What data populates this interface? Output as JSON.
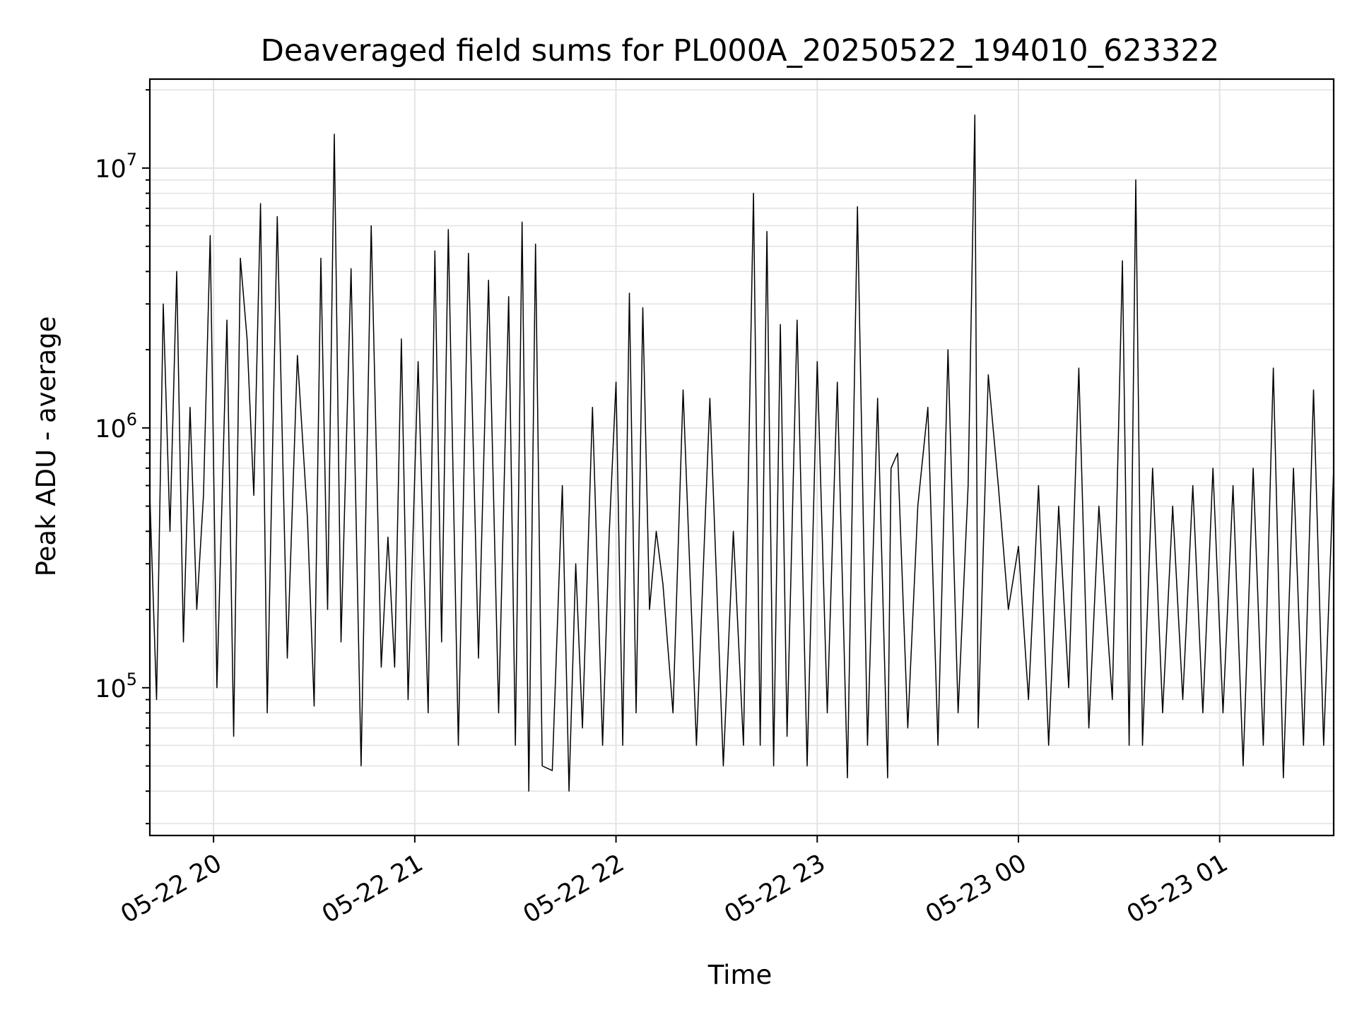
{
  "chart_data": {
    "type": "line",
    "title": "Deaveraged field sums for PL000A_20250522_194010_623322",
    "xlabel": "Time",
    "ylabel": "Peak ADU - average",
    "y_scale": "log",
    "xlim": [
      "2025-05-22 19:41",
      "2025-05-23 01:34"
    ],
    "ylim": [
      27000,
      22000000
    ],
    "x_tick_labels": [
      "05-22 20",
      "05-22 21",
      "05-22 22",
      "05-22 23",
      "05-23 00",
      "05-23 01"
    ],
    "x_ticks": [
      "2025-05-22 20:00",
      "2025-05-22 21:00",
      "2025-05-22 22:00",
      "2025-05-22 23:00",
      "2025-05-23 00:00",
      "2025-05-23 01:00"
    ],
    "y_ticks": [
      {
        "value": 100000,
        "base": "10",
        "exp": "5"
      },
      {
        "value": 1000000,
        "base": "10",
        "exp": "6"
      },
      {
        "value": 10000000,
        "base": "10",
        "exp": "7"
      }
    ],
    "grid": true,
    "series_color": "#000000",
    "series": [
      {
        "x": [
          "2025-05-22 19:41",
          "2025-05-22 19:43",
          "2025-05-22 19:45",
          "2025-05-22 19:47",
          "2025-05-22 19:49",
          "2025-05-22 19:51",
          "2025-05-22 19:53",
          "2025-05-22 19:55",
          "2025-05-22 19:57",
          "2025-05-22 19:59",
          "2025-05-22 20:01",
          "2025-05-22 20:04",
          "2025-05-22 20:06",
          "2025-05-22 20:08",
          "2025-05-22 20:10",
          "2025-05-22 20:12",
          "2025-05-22 20:14",
          "2025-05-22 20:16",
          "2025-05-22 20:19",
          "2025-05-22 20:22",
          "2025-05-22 20:25",
          "2025-05-22 20:28",
          "2025-05-22 20:30",
          "2025-05-22 20:32",
          "2025-05-22 20:34",
          "2025-05-22 20:36",
          "2025-05-22 20:38",
          "2025-05-22 20:41",
          "2025-05-22 20:44",
          "2025-05-22 20:47",
          "2025-05-22 20:50",
          "2025-05-22 20:52",
          "2025-05-22 20:54",
          "2025-05-22 20:56",
          "2025-05-22 20:58",
          "2025-05-22 21:01",
          "2025-05-22 21:04",
          "2025-05-22 21:06",
          "2025-05-22 21:08",
          "2025-05-22 21:10",
          "2025-05-22 21:13",
          "2025-05-22 21:16",
          "2025-05-22 21:19",
          "2025-05-22 21:22",
          "2025-05-22 21:25",
          "2025-05-22 21:28",
          "2025-05-22 21:30",
          "2025-05-22 21:32",
          "2025-05-22 21:34",
          "2025-05-22 21:36",
          "2025-05-22 21:38",
          "2025-05-22 21:41",
          "2025-05-22 21:44",
          "2025-05-22 21:46",
          "2025-05-22 21:48",
          "2025-05-22 21:50",
          "2025-05-22 21:53",
          "2025-05-22 21:56",
          "2025-05-22 21:58",
          "2025-05-22 22:00",
          "2025-05-22 22:02",
          "2025-05-22 22:04",
          "2025-05-22 22:06",
          "2025-05-22 22:08",
          "2025-05-22 22:10",
          "2025-05-22 22:12",
          "2025-05-22 22:14",
          "2025-05-22 22:17",
          "2025-05-22 22:20",
          "2025-05-22 22:24",
          "2025-05-22 22:28",
          "2025-05-22 22:32",
          "2025-05-22 22:35",
          "2025-05-22 22:38",
          "2025-05-22 22:41",
          "2025-05-22 22:43",
          "2025-05-22 22:45",
          "2025-05-22 22:47",
          "2025-05-22 22:49",
          "2025-05-22 22:51",
          "2025-05-22 22:54",
          "2025-05-22 22:57",
          "2025-05-22 23:00",
          "2025-05-22 23:03",
          "2025-05-22 23:06",
          "2025-05-22 23:09",
          "2025-05-22 23:12",
          "2025-05-22 23:15",
          "2025-05-22 23:18",
          "2025-05-22 23:21",
          "2025-05-22 23:22",
          "2025-05-22 23:24",
          "2025-05-22 23:27",
          "2025-05-22 23:30",
          "2025-05-22 23:33",
          "2025-05-22 23:36",
          "2025-05-22 23:39",
          "2025-05-22 23:42",
          "2025-05-22 23:45",
          "2025-05-22 23:47",
          "2025-05-22 23:48",
          "2025-05-22 23:51",
          "2025-05-22 23:54",
          "2025-05-22 23:57",
          "2025-05-23 00:00",
          "2025-05-23 00:03",
          "2025-05-23 00:06",
          "2025-05-23 00:09",
          "2025-05-23 00:12",
          "2025-05-23 00:15",
          "2025-05-23 00:18",
          "2025-05-23 00:21",
          "2025-05-23 00:24",
          "2025-05-23 00:28",
          "2025-05-23 00:31",
          "2025-05-23 00:33",
          "2025-05-23 00:35",
          "2025-05-23 00:37",
          "2025-05-23 00:40",
          "2025-05-23 00:43",
          "2025-05-23 00:46",
          "2025-05-23 00:49",
          "2025-05-23 00:52",
          "2025-05-23 00:55",
          "2025-05-23 00:58",
          "2025-05-23 01:01",
          "2025-05-23 01:04",
          "2025-05-23 01:07",
          "2025-05-23 01:10",
          "2025-05-23 01:13",
          "2025-05-23 01:16",
          "2025-05-23 01:19",
          "2025-05-23 01:22",
          "2025-05-23 01:25",
          "2025-05-23 01:28",
          "2025-05-23 01:31",
          "2025-05-23 01:34"
        ],
        "y": [
          550000,
          90000,
          3000000,
          400000,
          4000000,
          150000,
          1200000,
          200000,
          550000,
          5500000,
          100000,
          2600000,
          65000,
          4500000,
          2200000,
          550000,
          7300000,
          80000,
          6500000,
          130000,
          1900000,
          450000,
          85000,
          4500000,
          200000,
          13500000,
          150000,
          4100000,
          50000,
          6000000,
          120000,
          380000,
          120000,
          2200000,
          90000,
          1800000,
          80000,
          4800000,
          150000,
          5800000,
          60000,
          4700000,
          130000,
          3700000,
          80000,
          3200000,
          60000,
          6200000,
          40000,
          5100000,
          50000,
          48000,
          600000,
          40000,
          300000,
          70000,
          1200000,
          60000,
          400000,
          1500000,
          60000,
          3300000,
          80000,
          2900000,
          200000,
          400000,
          250000,
          80000,
          1400000,
          60000,
          1300000,
          50000,
          400000,
          60000,
          8000000,
          60000,
          5700000,
          50000,
          2500000,
          65000,
          2600000,
          50000,
          1800000,
          80000,
          1500000,
          45000,
          7100000,
          60000,
          1300000,
          45000,
          700000,
          800000,
          70000,
          500000,
          1200000,
          60000,
          2000000,
          80000,
          600000,
          16000000,
          70000,
          1600000,
          600000,
          200000,
          350000,
          90000,
          600000,
          60000,
          500000,
          100000,
          1700000,
          70000,
          500000,
          90000,
          4400000,
          60000,
          9000000,
          60000,
          700000,
          80000,
          500000,
          90000,
          600000,
          80000,
          700000,
          80000,
          600000,
          50000,
          700000,
          60000,
          1700000,
          45000,
          700000,
          60000,
          1400000,
          60000,
          700000
        ]
      }
    ]
  }
}
